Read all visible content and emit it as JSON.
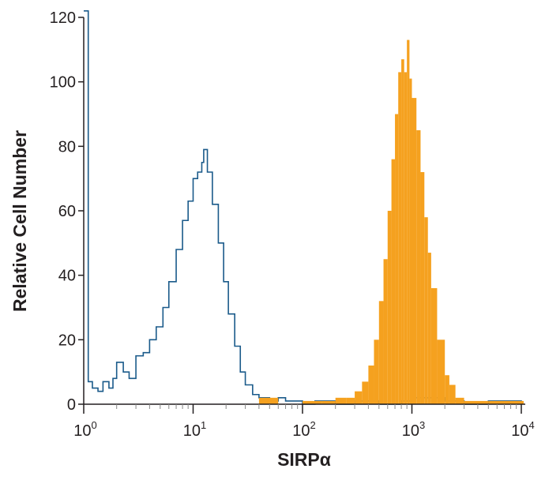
{
  "chart_data": {
    "type": "histogram",
    "title": "",
    "xlabel": "SIRPα",
    "ylabel": "Relative Cell Number",
    "x_scale": "log",
    "xlim": [
      1,
      10000
    ],
    "ylim": [
      0,
      120
    ],
    "x_ticks": [
      {
        "value": 1,
        "base": "10",
        "exp": "0"
      },
      {
        "value": 10,
        "base": "10",
        "exp": "1"
      },
      {
        "value": 100,
        "base": "10",
        "exp": "2"
      },
      {
        "value": 1000,
        "base": "10",
        "exp": "3"
      },
      {
        "value": 10000,
        "base": "10",
        "exp": "4"
      }
    ],
    "y_ticks": [
      {
        "value": 0,
        "label": "0"
      },
      {
        "value": 20,
        "label": "20"
      },
      {
        "value": 40,
        "label": "40"
      },
      {
        "value": 60,
        "label": "60"
      },
      {
        "value": 80,
        "label": "80"
      },
      {
        "value": 100,
        "label": "100"
      },
      {
        "value": 120,
        "label": "120"
      }
    ],
    "grid": false,
    "series": [
      {
        "style": "outline",
        "color": "#1a5a8a",
        "x": [
          1.0,
          1.1,
          1.2,
          1.35,
          1.5,
          1.7,
          1.85,
          2.0,
          2.3,
          2.6,
          3.0,
          3.5,
          4.0,
          4.6,
          5.3,
          6.0,
          7.0,
          8.0,
          9.0,
          10.0,
          11.0,
          12.0,
          12.5,
          13.5,
          15.0,
          17.0,
          19.0,
          21.0,
          24.0,
          27.0,
          30.0,
          35.0,
          40.0,
          50.0,
          60.0,
          70.0,
          80.0,
          100.0,
          130.0,
          200.0,
          300.0,
          500.0,
          800.0,
          1000.0,
          1500.0,
          2000.0,
          3000.0,
          5000.0,
          8000.0,
          10000.0
        ],
        "y": [
          122,
          7,
          5,
          4,
          7,
          5,
          8,
          13,
          10,
          8,
          15,
          16,
          20,
          24,
          30,
          38,
          48,
          57,
          63,
          70,
          72,
          75,
          79,
          72,
          62,
          50,
          38,
          28,
          18,
          10,
          6,
          3,
          2,
          1,
          2,
          1,
          1,
          0,
          1,
          0,
          1,
          0,
          1,
          2,
          2,
          1,
          0,
          1,
          1,
          0
        ]
      },
      {
        "style": "filled",
        "color": "#f5a11f",
        "x": [
          30,
          40,
          60,
          100,
          150,
          200,
          250,
          300,
          350,
          400,
          450,
          500,
          550,
          600,
          650,
          700,
          750,
          800,
          850,
          900,
          950,
          1000,
          1100,
          1200,
          1300,
          1400,
          1500,
          1700,
          2000,
          2200,
          2500,
          3000,
          5000,
          10000
        ],
        "y": [
          0,
          2,
          0,
          1,
          1,
          2,
          2,
          4,
          7,
          12,
          20,
          32,
          45,
          60,
          76,
          90,
          103,
          107,
          103,
          113,
          101,
          95,
          85,
          72,
          58,
          47,
          36,
          20,
          9,
          6,
          2,
          1,
          1,
          1
        ]
      }
    ]
  }
}
